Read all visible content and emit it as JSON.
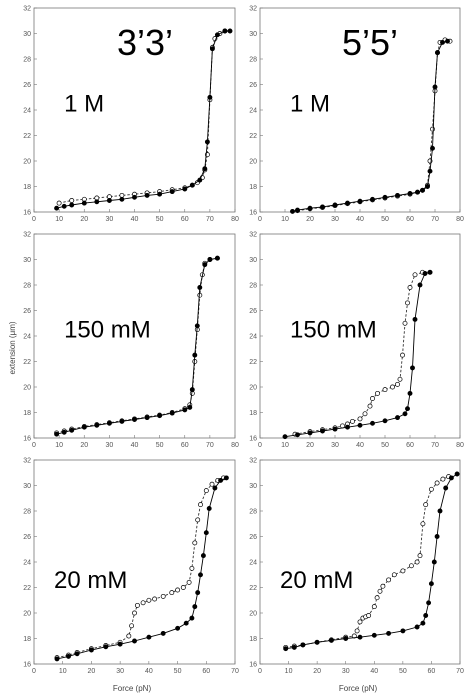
{
  "figure": {
    "column_headers": [
      "3’3’",
      "5’5’"
    ],
    "xlabel": "Force (pN)",
    "ylabel": "extension (μm)",
    "xlim": [
      0,
      80
    ],
    "ylim": [
      16,
      32
    ],
    "xticks": [
      0,
      10,
      20,
      30,
      40,
      50,
      60,
      70,
      80
    ],
    "yticks": [
      16,
      18,
      20,
      22,
      24,
      26,
      28,
      30,
      32
    ],
    "series_styles": [
      {
        "marker": "open-circle",
        "line": "dashed",
        "color": "#333333"
      },
      {
        "marker": "filled-circle",
        "line": "solid",
        "color": "#000000"
      }
    ]
  },
  "chart_data": [
    {
      "type": "line",
      "row": 0,
      "col": 0,
      "condition_label": "1 M",
      "xlim": [
        0,
        80
      ],
      "ylim": [
        16,
        32
      ],
      "series": [
        {
          "x": [
            10,
            15,
            20,
            25,
            30,
            35,
            40,
            45,
            50,
            55,
            60,
            63,
            65,
            67,
            68,
            69,
            70,
            71,
            72,
            74,
            76
          ],
          "y": [
            16.7,
            16.9,
            17.0,
            17.1,
            17.2,
            17.3,
            17.4,
            17.5,
            17.6,
            17.75,
            17.9,
            18.1,
            18.3,
            18.7,
            19.3,
            20.5,
            24.8,
            28.9,
            29.6,
            30.0,
            30.2
          ]
        },
        {
          "x": [
            9,
            12,
            15,
            20,
            25,
            30,
            35,
            40,
            45,
            50,
            55,
            60,
            63,
            66,
            68,
            69,
            70,
            71,
            73,
            76,
            78
          ],
          "y": [
            16.3,
            16.45,
            16.55,
            16.7,
            16.8,
            16.9,
            17.0,
            17.15,
            17.3,
            17.4,
            17.6,
            17.8,
            18.1,
            18.5,
            19.4,
            21.5,
            25.0,
            28.8,
            29.9,
            30.2,
            30.2
          ]
        }
      ]
    },
    {
      "type": "line",
      "row": 0,
      "col": 1,
      "condition_label": "1 M",
      "xlim": [
        0,
        80
      ],
      "ylim": [
        16,
        32
      ],
      "series": [
        {
          "x": [
            15,
            20,
            25,
            30,
            35,
            40,
            45,
            50,
            55,
            60,
            63,
            65,
            67,
            68,
            69,
            70,
            71,
            72,
            74,
            76
          ],
          "y": [
            16.1,
            16.25,
            16.35,
            16.5,
            16.65,
            16.8,
            16.95,
            17.1,
            17.25,
            17.4,
            17.55,
            17.7,
            18.1,
            20.0,
            22.5,
            25.5,
            28.5,
            29.3,
            29.5,
            29.4
          ]
        },
        {
          "x": [
            13,
            15,
            20,
            25,
            30,
            35,
            40,
            45,
            50,
            55,
            60,
            63,
            65,
            67,
            68,
            69,
            70,
            71,
            73,
            75
          ],
          "y": [
            16.05,
            16.15,
            16.3,
            16.4,
            16.55,
            16.7,
            16.85,
            17.0,
            17.15,
            17.3,
            17.45,
            17.55,
            17.7,
            18.0,
            19.2,
            21.0,
            25.8,
            28.5,
            29.3,
            29.4
          ]
        }
      ]
    },
    {
      "type": "line",
      "row": 1,
      "col": 0,
      "condition_label": "150 mM",
      "xlim": [
        0,
        80
      ],
      "ylim": [
        16,
        32
      ],
      "series": [
        {
          "x": [
            9,
            12,
            15,
            20,
            25,
            30,
            35,
            40,
            45,
            50,
            55,
            60,
            62,
            63,
            64,
            65,
            66,
            67,
            68,
            70,
            73
          ],
          "y": [
            16.4,
            16.55,
            16.7,
            16.9,
            17.05,
            17.2,
            17.35,
            17.5,
            17.65,
            17.8,
            18.0,
            18.3,
            18.6,
            19.5,
            22.0,
            24.5,
            27.2,
            28.8,
            29.7,
            30.0,
            30.1
          ]
        },
        {
          "x": [
            9,
            12,
            15,
            20,
            25,
            30,
            35,
            40,
            45,
            50,
            55,
            60,
            62,
            63,
            64,
            65,
            66,
            68,
            70,
            73
          ],
          "y": [
            16.3,
            16.45,
            16.6,
            16.85,
            17.0,
            17.15,
            17.3,
            17.45,
            17.6,
            17.75,
            17.95,
            18.2,
            18.4,
            19.8,
            22.5,
            24.8,
            27.8,
            29.6,
            30.0,
            30.1
          ]
        }
      ]
    },
    {
      "type": "line",
      "row": 1,
      "col": 1,
      "condition_label": "150 mM",
      "xlim": [
        0,
        80
      ],
      "ylim": [
        16,
        32
      ],
      "series": [
        {
          "x": [
            14,
            20,
            25,
            30,
            33,
            35,
            37,
            40,
            42,
            44,
            45,
            47,
            50,
            53,
            55,
            56,
            57,
            58,
            59,
            60,
            62,
            65,
            68
          ],
          "y": [
            16.3,
            16.5,
            16.65,
            16.8,
            16.95,
            17.1,
            17.3,
            17.5,
            17.9,
            18.5,
            19.1,
            19.5,
            19.8,
            20.0,
            20.2,
            20.6,
            22.5,
            25.0,
            26.6,
            27.8,
            28.8,
            29.0,
            29.0
          ]
        },
        {
          "x": [
            10,
            15,
            20,
            25,
            30,
            35,
            40,
            45,
            50,
            55,
            58,
            59,
            60,
            61,
            62,
            64,
            66,
            68
          ],
          "y": [
            16.1,
            16.25,
            16.4,
            16.55,
            16.7,
            16.85,
            17.0,
            17.15,
            17.35,
            17.6,
            17.9,
            18.3,
            19.5,
            21.5,
            25.3,
            28.0,
            28.9,
            29.0
          ]
        }
      ]
    },
    {
      "type": "line",
      "row": 2,
      "col": 0,
      "condition_label": "20 mM",
      "xlim": [
        0,
        70
      ],
      "ylim": [
        16,
        32
      ],
      "series": [
        {
          "x": [
            8,
            12,
            15,
            20,
            25,
            30,
            33,
            34,
            35,
            36,
            38,
            40,
            42,
            45,
            48,
            50,
            52,
            54,
            55,
            56,
            57,
            58,
            60,
            62,
            64,
            66
          ],
          "y": [
            16.5,
            16.7,
            16.9,
            17.2,
            17.45,
            17.7,
            18.2,
            19.0,
            20.0,
            20.6,
            20.8,
            21.0,
            21.1,
            21.3,
            21.6,
            21.8,
            22.0,
            22.4,
            23.5,
            25.5,
            27.3,
            28.5,
            29.6,
            30.1,
            30.4,
            30.6
          ]
        },
        {
          "x": [
            8,
            12,
            15,
            20,
            25,
            30,
            35,
            40,
            45,
            50,
            53,
            55,
            56,
            57,
            58,
            59,
            60,
            61,
            63,
            65,
            67
          ],
          "y": [
            16.4,
            16.6,
            16.8,
            17.1,
            17.35,
            17.55,
            17.8,
            18.1,
            18.4,
            18.8,
            19.2,
            19.6,
            20.5,
            21.6,
            23.0,
            24.5,
            26.3,
            28.2,
            29.8,
            30.4,
            30.6
          ]
        }
      ]
    },
    {
      "type": "line",
      "row": 2,
      "col": 1,
      "condition_label": "20 mM",
      "xlim": [
        0,
        70
      ],
      "ylim": [
        16,
        32
      ],
      "series": [
        {
          "x": [
            9,
            12,
            15,
            20,
            25,
            30,
            33,
            34,
            35,
            36,
            37,
            38,
            40,
            41,
            42,
            43,
            45,
            47,
            50,
            53,
            55,
            56,
            57,
            58,
            60,
            62,
            64,
            66
          ],
          "y": [
            17.3,
            17.4,
            17.5,
            17.7,
            17.9,
            18.1,
            18.2,
            18.6,
            19.3,
            19.6,
            19.7,
            19.8,
            20.5,
            21.2,
            21.7,
            22.1,
            22.6,
            23.0,
            23.3,
            23.7,
            24.0,
            24.5,
            27.0,
            28.5,
            29.7,
            30.2,
            30.5,
            30.7
          ]
        },
        {
          "x": [
            9,
            12,
            15,
            20,
            25,
            30,
            35,
            40,
            45,
            50,
            55,
            57,
            58,
            59,
            60,
            61,
            62,
            63,
            65,
            67,
            69
          ],
          "y": [
            17.2,
            17.3,
            17.5,
            17.7,
            17.85,
            18.0,
            18.1,
            18.25,
            18.4,
            18.6,
            18.9,
            19.2,
            19.8,
            20.8,
            22.3,
            24.0,
            26.0,
            28.0,
            29.8,
            30.6,
            30.9
          ]
        }
      ]
    }
  ]
}
